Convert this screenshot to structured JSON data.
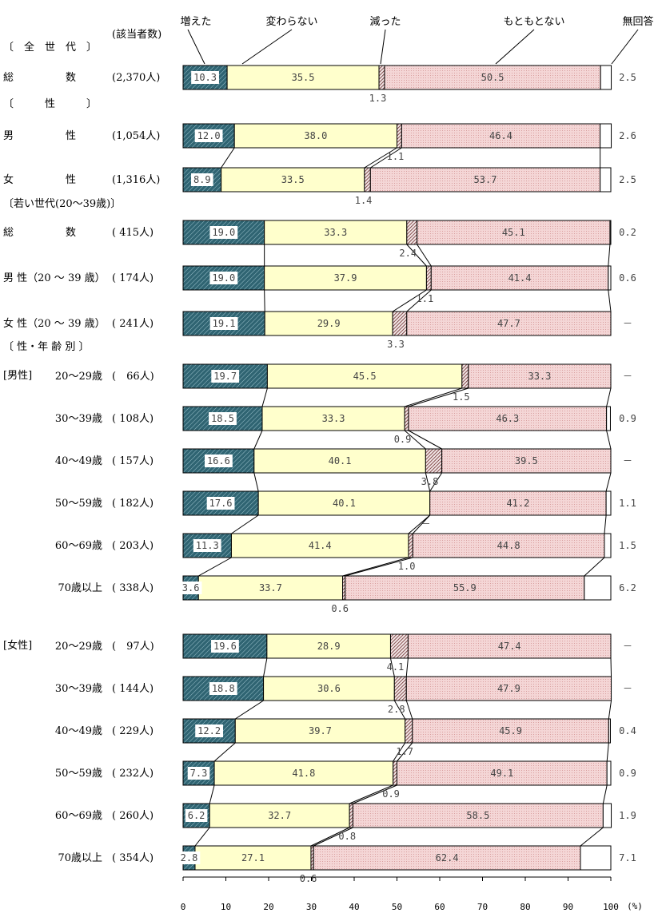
{
  "chart_data": {
    "type": "bar",
    "stacked": "100% horizontal",
    "respondents_header": "(該当者数)",
    "legend": [
      "増えた",
      "変わらない",
      "減った",
      "もともとない",
      "無回答"
    ],
    "series_colors": [
      "#2f6472",
      "#ffffcc",
      "#8a5050",
      "#f4d6d6",
      "#ffffff"
    ],
    "xlim": [
      0,
      100
    ],
    "x_ticks": [
      "0",
      "10",
      "20",
      "30",
      "40",
      "50",
      "60",
      "70",
      "80",
      "90",
      "100"
    ],
    "x_unit": "(%)",
    "sections": [
      "〔　全　世　代　〕",
      "〔　　　性　　　〕",
      "〔若い世代(20～39歳)〕",
      "〔 性・年 齢 別 〕",
      "[男性]",
      "[女性]"
    ],
    "rows": [
      {
        "label": "総　　　　　数",
        "n": "(2,370人)",
        "values": [
          10.3,
          35.5,
          1.3,
          50.5,
          2.5
        ],
        "labels": [
          "10.3",
          "35.5",
          "1.3",
          "50.5",
          "2.5"
        ]
      },
      {
        "label": "男　　　　　性",
        "n": "(1,054人)",
        "values": [
          12.0,
          38.0,
          1.1,
          46.4,
          2.6
        ],
        "labels": [
          "12.0",
          "38.0",
          "1.1",
          "46.4",
          "2.6"
        ]
      },
      {
        "label": "女　　　　　性",
        "n": "(1,316人)",
        "values": [
          8.9,
          33.5,
          1.4,
          53.7,
          2.5
        ],
        "labels": [
          "8.9",
          "33.5",
          "1.4",
          "53.7",
          "2.5"
        ]
      },
      {
        "label": "総　　　　　数",
        "n": "( 415人)",
        "values": [
          19.0,
          33.3,
          2.4,
          45.1,
          0.2
        ],
        "labels": [
          "19.0",
          "33.3",
          "2.4",
          "45.1",
          "0.2"
        ]
      },
      {
        "label": "男 性（20 ～ 39 歳）",
        "n": "( 174人)",
        "values": [
          19.0,
          37.9,
          1.1,
          41.4,
          0.6
        ],
        "labels": [
          "19.0",
          "37.9",
          "1.1",
          "41.4",
          "0.6"
        ]
      },
      {
        "label": "女 性（20 ～ 39 歳）",
        "n": "( 241人)",
        "values": [
          19.1,
          29.9,
          3.3,
          47.7,
          0
        ],
        "labels": [
          "19.1",
          "29.9",
          "3.3",
          "47.7",
          "－"
        ]
      },
      {
        "label": "20～29歳",
        "n": "(　66人)",
        "values": [
          19.7,
          45.5,
          1.5,
          33.3,
          0
        ],
        "labels": [
          "19.7",
          "45.5",
          "1.5",
          "33.3",
          "－"
        ]
      },
      {
        "label": "30～39歳",
        "n": "( 108人)",
        "values": [
          18.5,
          33.3,
          0.9,
          46.3,
          0.9
        ],
        "labels": [
          "18.5",
          "33.3",
          "0.9",
          "46.3",
          "0.9"
        ]
      },
      {
        "label": "40～49歳",
        "n": "( 157人)",
        "values": [
          16.6,
          40.1,
          3.8,
          39.5,
          0
        ],
        "labels": [
          "16.6",
          "40.1",
          "3.8",
          "39.5",
          "－"
        ]
      },
      {
        "label": "50～59歳",
        "n": "( 182人)",
        "values": [
          17.6,
          40.1,
          0,
          41.2,
          1.1
        ],
        "labels": [
          "17.6",
          "40.1",
          "－",
          "41.2",
          "1.1"
        ]
      },
      {
        "label": "60～69歳",
        "n": "( 203人)",
        "values": [
          11.3,
          41.4,
          1.0,
          44.8,
          1.5
        ],
        "labels": [
          "11.3",
          "41.4",
          "1.0",
          "44.8",
          "1.5"
        ]
      },
      {
        "label": "70歳以上",
        "n": "( 338人)",
        "values": [
          3.6,
          33.7,
          0.6,
          55.9,
          6.2
        ],
        "labels": [
          "3.6",
          "33.7",
          "0.6",
          "55.9",
          "6.2"
        ]
      },
      {
        "label": "20～29歳",
        "n": "(　97人)",
        "values": [
          19.6,
          28.9,
          4.1,
          47.4,
          0
        ],
        "labels": [
          "19.6",
          "28.9",
          "4.1",
          "47.4",
          "－"
        ]
      },
      {
        "label": "30～39歳",
        "n": "( 144人)",
        "values": [
          18.8,
          30.6,
          2.8,
          47.9,
          0
        ],
        "labels": [
          "18.8",
          "30.6",
          "2.8",
          "47.9",
          "－"
        ]
      },
      {
        "label": "40～49歳",
        "n": "( 229人)",
        "values": [
          12.2,
          39.7,
          1.7,
          45.9,
          0.4
        ],
        "labels": [
          "12.2",
          "39.7",
          "1.7",
          "45.9",
          "0.4"
        ]
      },
      {
        "label": "50～59歳",
        "n": "( 232人)",
        "values": [
          7.3,
          41.8,
          0.9,
          49.1,
          0.9
        ],
        "labels": [
          "7.3",
          "41.8",
          "0.9",
          "49.1",
          "0.9"
        ]
      },
      {
        "label": "60～69歳",
        "n": "( 260人)",
        "values": [
          6.2,
          32.7,
          0.8,
          58.5,
          1.9
        ],
        "labels": [
          "6.2",
          "32.7",
          "0.8",
          "58.5",
          "1.9"
        ]
      },
      {
        "label": "70歳以上",
        "n": "( 354人)",
        "values": [
          2.8,
          27.1,
          0.6,
          62.4,
          7.1
        ],
        "labels": [
          "2.8",
          "27.1",
          "0.6",
          "62.4",
          "7.1"
        ]
      }
    ]
  }
}
